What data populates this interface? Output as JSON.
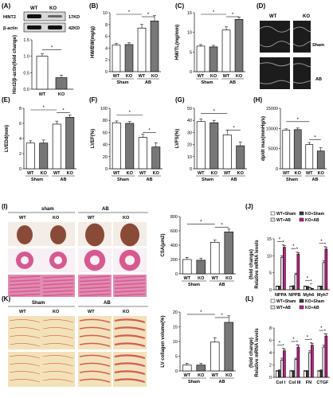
{
  "panel_letters": [
    "(A)",
    "(B)",
    "(C)",
    "(D)",
    "(E)",
    "(F)",
    "(G)",
    "(H)",
    "(I)",
    "(J)",
    "(K)",
    "(L)"
  ],
  "colors": {
    "wt_bar": "#ffffff",
    "ko_bar": "#777777",
    "outline": "#111111",
    "wt_sham": "#ffffff",
    "ko_sham": "#3a3a3a",
    "wt_ab": "#e3e3e3",
    "ko_ab": "#c41a8a",
    "heart": "#8a4a38",
    "he_pink": "#e08cb2",
    "he_tissue": "#d65a8f",
    "sirius_bg": "#f3e2b8",
    "sirius_red": "#c83a4a",
    "echo_bg": "#1c1c1c"
  },
  "panelA": {
    "blot_labels": [
      "WT",
      "KO"
    ],
    "rows": [
      {
        "name": "HINT2",
        "kd": "17KD"
      },
      {
        "name": "β-actin",
        "kd": "42KD"
      }
    ],
    "star": "*",
    "chart_data": {
      "type": "bar",
      "categories": [
        "WT",
        "KO"
      ],
      "values": [
        1.0,
        0.35
      ],
      "ylabel": "Hint2/β-actin(fold change)",
      "ylim": [
        0,
        1.5
      ],
      "yticks": [
        "0.0",
        "0.5",
        "1.0",
        "1.5"
      ]
    }
  },
  "panelD": {
    "col_labels": [
      "WT",
      "KO"
    ],
    "row_labels": [
      "Sham",
      "AB"
    ]
  },
  "panelI": {
    "group_labels": [
      "sham",
      "AB"
    ],
    "col_labels": [
      "WT",
      "KO",
      "WT",
      "KO"
    ]
  },
  "panelK": {
    "group_labels": [
      "Sham",
      "AB"
    ],
    "col_labels": [
      "WT",
      "KO",
      "WT",
      "KO"
    ]
  },
  "group_charts": [
    {
      "id": "B",
      "ylabel": "HW/BW(mg/g)",
      "ylim": [
        0,
        10
      ],
      "yticks": [
        "0",
        "2",
        "4",
        "6",
        "8",
        "10"
      ],
      "values": [
        4.5,
        4.6,
        7.4,
        8.6
      ],
      "errors": [
        0.3,
        0.3,
        0.6,
        0.9
      ]
    },
    {
      "id": "C",
      "ylabel": "HW/TL(mg/mm)",
      "ylim": [
        0,
        15
      ],
      "yticks": [
        "0",
        "5",
        "10",
        "15"
      ],
      "values": [
        6.5,
        6.3,
        10.6,
        13.3
      ],
      "errors": [
        0.4,
        0.4,
        0.8,
        0.6
      ]
    },
    {
      "id": "E",
      "ylabel": "LVEDd(mm)",
      "ylim": [
        0,
        8
      ],
      "yticks": [
        "0",
        "2",
        "4",
        "6",
        "8"
      ],
      "values": [
        3.4,
        3.4,
        5.9,
        6.8
      ],
      "errors": [
        0.3,
        0.4,
        0.4,
        0.3
      ]
    },
    {
      "id": "F",
      "ylabel": "LVEF(%)",
      "ylim": [
        0,
        100
      ],
      "yticks": [
        "0",
        "20",
        "40",
        "60",
        "80",
        "100"
      ],
      "values": [
        76,
        75,
        52,
        36
      ],
      "errors": [
        3,
        3,
        5,
        7
      ]
    },
    {
      "id": "G",
      "ylabel": "LVFS(%)",
      "ylim": [
        0,
        50
      ],
      "yticks": [
        "0",
        "10",
        "20",
        "30",
        "40",
        "50"
      ],
      "values": [
        39,
        38,
        28,
        19
      ],
      "errors": [
        2,
        2,
        4,
        3
      ]
    },
    {
      "id": "H",
      "ylabel": "dp/dt max(mmHg/s)",
      "ylim": [
        0,
        15000
      ],
      "yticks": [
        "0",
        "5000",
        "10000",
        "15000"
      ],
      "values": [
        9600,
        9700,
        6000,
        4400
      ],
      "errors": [
        300,
        400,
        500,
        800
      ]
    },
    {
      "id": "I",
      "ylabel": "CSA(μm2)",
      "ylim": [
        0,
        800
      ],
      "yticks": [
        "0",
        "200",
        "400",
        "600",
        "800"
      ],
      "values": [
        200,
        190,
        440,
        585
      ],
      "errors": [
        30,
        30,
        30,
        40
      ]
    },
    {
      "id": "K",
      "ylabel": "LV collagen volume(%)",
      "ylim": [
        0,
        20
      ],
      "yticks": [
        "0",
        "5",
        "10",
        "15",
        "20"
      ],
      "values": [
        2.0,
        2.0,
        9.8,
        16.5
      ],
      "errors": [
        0.6,
        0.6,
        1.5,
        2.2
      ]
    }
  ],
  "group_labels": {
    "x1": [
      "WT",
      "KO",
      "WT",
      "KO"
    ],
    "x2": [
      "Sham",
      "AB"
    ],
    "star": "*"
  },
  "legend": [
    "WT+Sham",
    "KO+Sham",
    "WT+AB",
    "KO+AB"
  ],
  "mrna_charts": [
    {
      "id": "J",
      "ylabel": "Relative mRNA levels",
      "ylabel2": "(fold change)",
      "ylim": [
        0,
        15
      ],
      "yticks": [
        "0",
        "5",
        "10",
        "15"
      ],
      "categories": [
        "NPPA",
        "NPPB",
        "Myh6",
        "Myh7"
      ],
      "series": [
        {
          "name": "WT+Sham",
          "values": [
            1.0,
            1.0,
            1.0,
            1.0
          ],
          "errors": [
            0.1,
            0.1,
            0.1,
            0.1
          ]
        },
        {
          "name": "KO+Sham",
          "values": [
            1.0,
            1.1,
            0.9,
            1.0
          ],
          "errors": [
            0.1,
            0.1,
            0.1,
            0.1
          ]
        },
        {
          "name": "WT+AB",
          "values": [
            9.5,
            4.5,
            0.6,
            8.0
          ],
          "errors": [
            0.5,
            0.4,
            0.1,
            0.5
          ]
        },
        {
          "name": "KO+AB",
          "values": [
            12.5,
            10.5,
            0.3,
            12.0
          ],
          "errors": [
            0.5,
            0.4,
            0.1,
            0.5
          ]
        }
      ]
    },
    {
      "id": "L",
      "ylabel": "Relative mRNA levels",
      "ylabel2": "(fold change)",
      "ylim": [
        0,
        8
      ],
      "yticks": [
        "0",
        "2",
        "4",
        "6",
        "8"
      ],
      "categories": [
        "Col I",
        "Col III",
        "FN",
        "CTGF"
      ],
      "series": [
        {
          "name": "WT+Sham",
          "values": [
            1.0,
            1.0,
            1.0,
            1.0
          ],
          "errors": [
            0.1,
            0.1,
            0.1,
            0.1
          ]
        },
        {
          "name": "KO+Sham",
          "values": [
            1.1,
            1.0,
            1.0,
            1.1
          ],
          "errors": [
            0.1,
            0.1,
            0.1,
            0.1
          ]
        },
        {
          "name": "WT+AB",
          "values": [
            2.8,
            2.9,
            4.0,
            4.9
          ],
          "errors": [
            0.3,
            0.2,
            0.3,
            0.3
          ]
        },
        {
          "name": "KO+AB",
          "values": [
            4.3,
            4.9,
            5.2,
            6.7
          ],
          "errors": [
            0.3,
            0.3,
            0.3,
            0.3
          ]
        }
      ]
    }
  ]
}
